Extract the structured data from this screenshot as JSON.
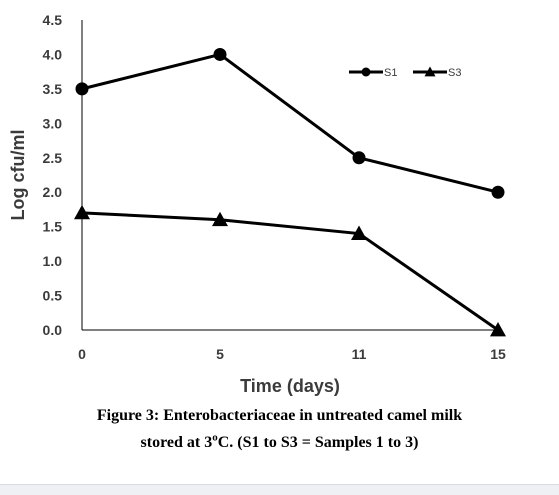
{
  "chart_data": {
    "type": "line",
    "title": "",
    "xlabel": "Time (days)",
    "ylabel": "Log cfu/ml",
    "categories": [
      "0",
      "5",
      "11",
      "15"
    ],
    "ylim": [
      0,
      4.5
    ],
    "yticks": [
      "0.0",
      "0.5",
      "1.0",
      "1.5",
      "2.0",
      "2.5",
      "3.0",
      "3.5",
      "4.0",
      "4.5"
    ],
    "grid": false,
    "legend_position": "top-right",
    "series": [
      {
        "name": "S1",
        "marker": "circle",
        "values": [
          3.5,
          4.0,
          2.5,
          2.0
        ]
      },
      {
        "name": "S3",
        "marker": "triangle",
        "values": [
          1.7,
          1.6,
          1.4,
          0.0
        ]
      }
    ]
  },
  "caption": {
    "line1": "Figure 3: Enterobacteriaceae in untreated camel milk",
    "line2_before": "stored at 3",
    "line2_sup": "o",
    "line2_after": "C. (S1 to S3 = Samples 1 to 3)"
  },
  "colors": {
    "series": "#000000",
    "axis": "#000000",
    "tick_text": "#3b3b3b",
    "background": "#ffffff"
  }
}
